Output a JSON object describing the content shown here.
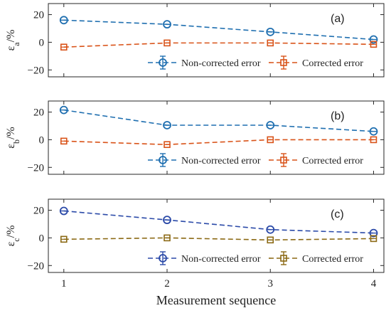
{
  "chart_data": [
    {
      "type": "line",
      "panel_label": "(a)",
      "ylabel": "ε",
      "ylabel_sub": "a",
      "ylabel_suffix": "/%",
      "x": [
        1,
        2,
        3,
        4
      ],
      "xlim": [
        0.85,
        4.1
      ],
      "ylim": [
        -25,
        28
      ],
      "yticks": [
        -20,
        0,
        20
      ],
      "series": [
        {
          "name": "Non-corrected error",
          "values": [
            16,
            13,
            7.5,
            2
          ],
          "color": "#1f6fb0",
          "marker": "circle"
        },
        {
          "name": "Corrected error",
          "values": [
            -3.5,
            -0.5,
            -0.5,
            -1.5
          ],
          "color": "#d95319",
          "marker": "square"
        }
      ],
      "legend_position": "bottom-right",
      "grid": false
    },
    {
      "type": "line",
      "panel_label": "(b)",
      "ylabel": "ε",
      "ylabel_sub": "b",
      "ylabel_suffix": "/%",
      "x": [
        1,
        2,
        3,
        4
      ],
      "xlim": [
        0.85,
        4.1
      ],
      "ylim": [
        -25,
        28
      ],
      "yticks": [
        -20,
        0,
        20
      ],
      "series": [
        {
          "name": "Non-corrected error",
          "values": [
            21.5,
            10.5,
            10.5,
            6
          ],
          "color": "#1f6fb0",
          "marker": "circle"
        },
        {
          "name": "Corrected error",
          "values": [
            -1,
            -3.5,
            0,
            0
          ],
          "color": "#d95319",
          "marker": "square"
        }
      ],
      "legend_position": "bottom-right",
      "grid": false
    },
    {
      "type": "line",
      "panel_label": "(c)",
      "ylabel": "ε",
      "ylabel_sub": "c",
      "ylabel_suffix": "/%",
      "x": [
        1,
        2,
        3,
        4
      ],
      "xlim": [
        0.85,
        4.1
      ],
      "ylim": [
        -25,
        28
      ],
      "yticks": [
        -20,
        0,
        20
      ],
      "xticks": [
        "1",
        "2",
        "3",
        "4"
      ],
      "xlabel": "Measurement sequence",
      "series": [
        {
          "name": "Non-corrected error",
          "values": [
            19.5,
            13,
            6,
            3.5
          ],
          "color": "#2b4aa8",
          "marker": "circle"
        },
        {
          "name": "Corrected error",
          "values": [
            -1,
            0,
            -1.5,
            -0.5
          ],
          "color": "#8b6914",
          "marker": "square"
        }
      ],
      "legend_position": "bottom-right",
      "grid": false
    }
  ]
}
